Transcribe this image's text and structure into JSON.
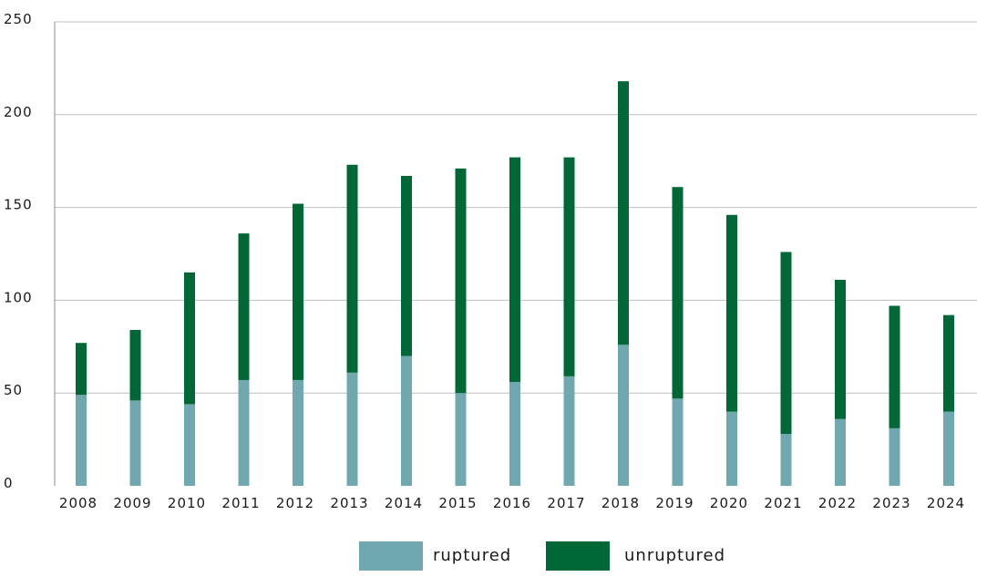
{
  "chart_data": {
    "type": "bar",
    "stacked": true,
    "categories": [
      "2008",
      "2009",
      "2010",
      "2011",
      "2012",
      "2013",
      "2014",
      "2015",
      "2016",
      "2017",
      "2018",
      "2019",
      "2020",
      "2021",
      "2022",
      "2023",
      "2024"
    ],
    "series": [
      {
        "name": "ruptured",
        "color": "#6fa8ae",
        "values": [
          49,
          46,
          44,
          57,
          57,
          61,
          70,
          50,
          56,
          59,
          76,
          47,
          40,
          28,
          36,
          31,
          40
        ]
      },
      {
        "name": "unruptured",
        "color": "#006837",
        "values": [
          28,
          38,
          71,
          79,
          95,
          112,
          97,
          121,
          121,
          118,
          142,
          114,
          106,
          98,
          75,
          66,
          52
        ]
      }
    ],
    "ylim": [
      0,
      250
    ],
    "yticks": [
      0,
      50,
      100,
      150,
      200,
      250
    ],
    "grid": true,
    "legend": "bottom-center",
    "xlabel": "",
    "ylabel": "",
    "title": ""
  }
}
